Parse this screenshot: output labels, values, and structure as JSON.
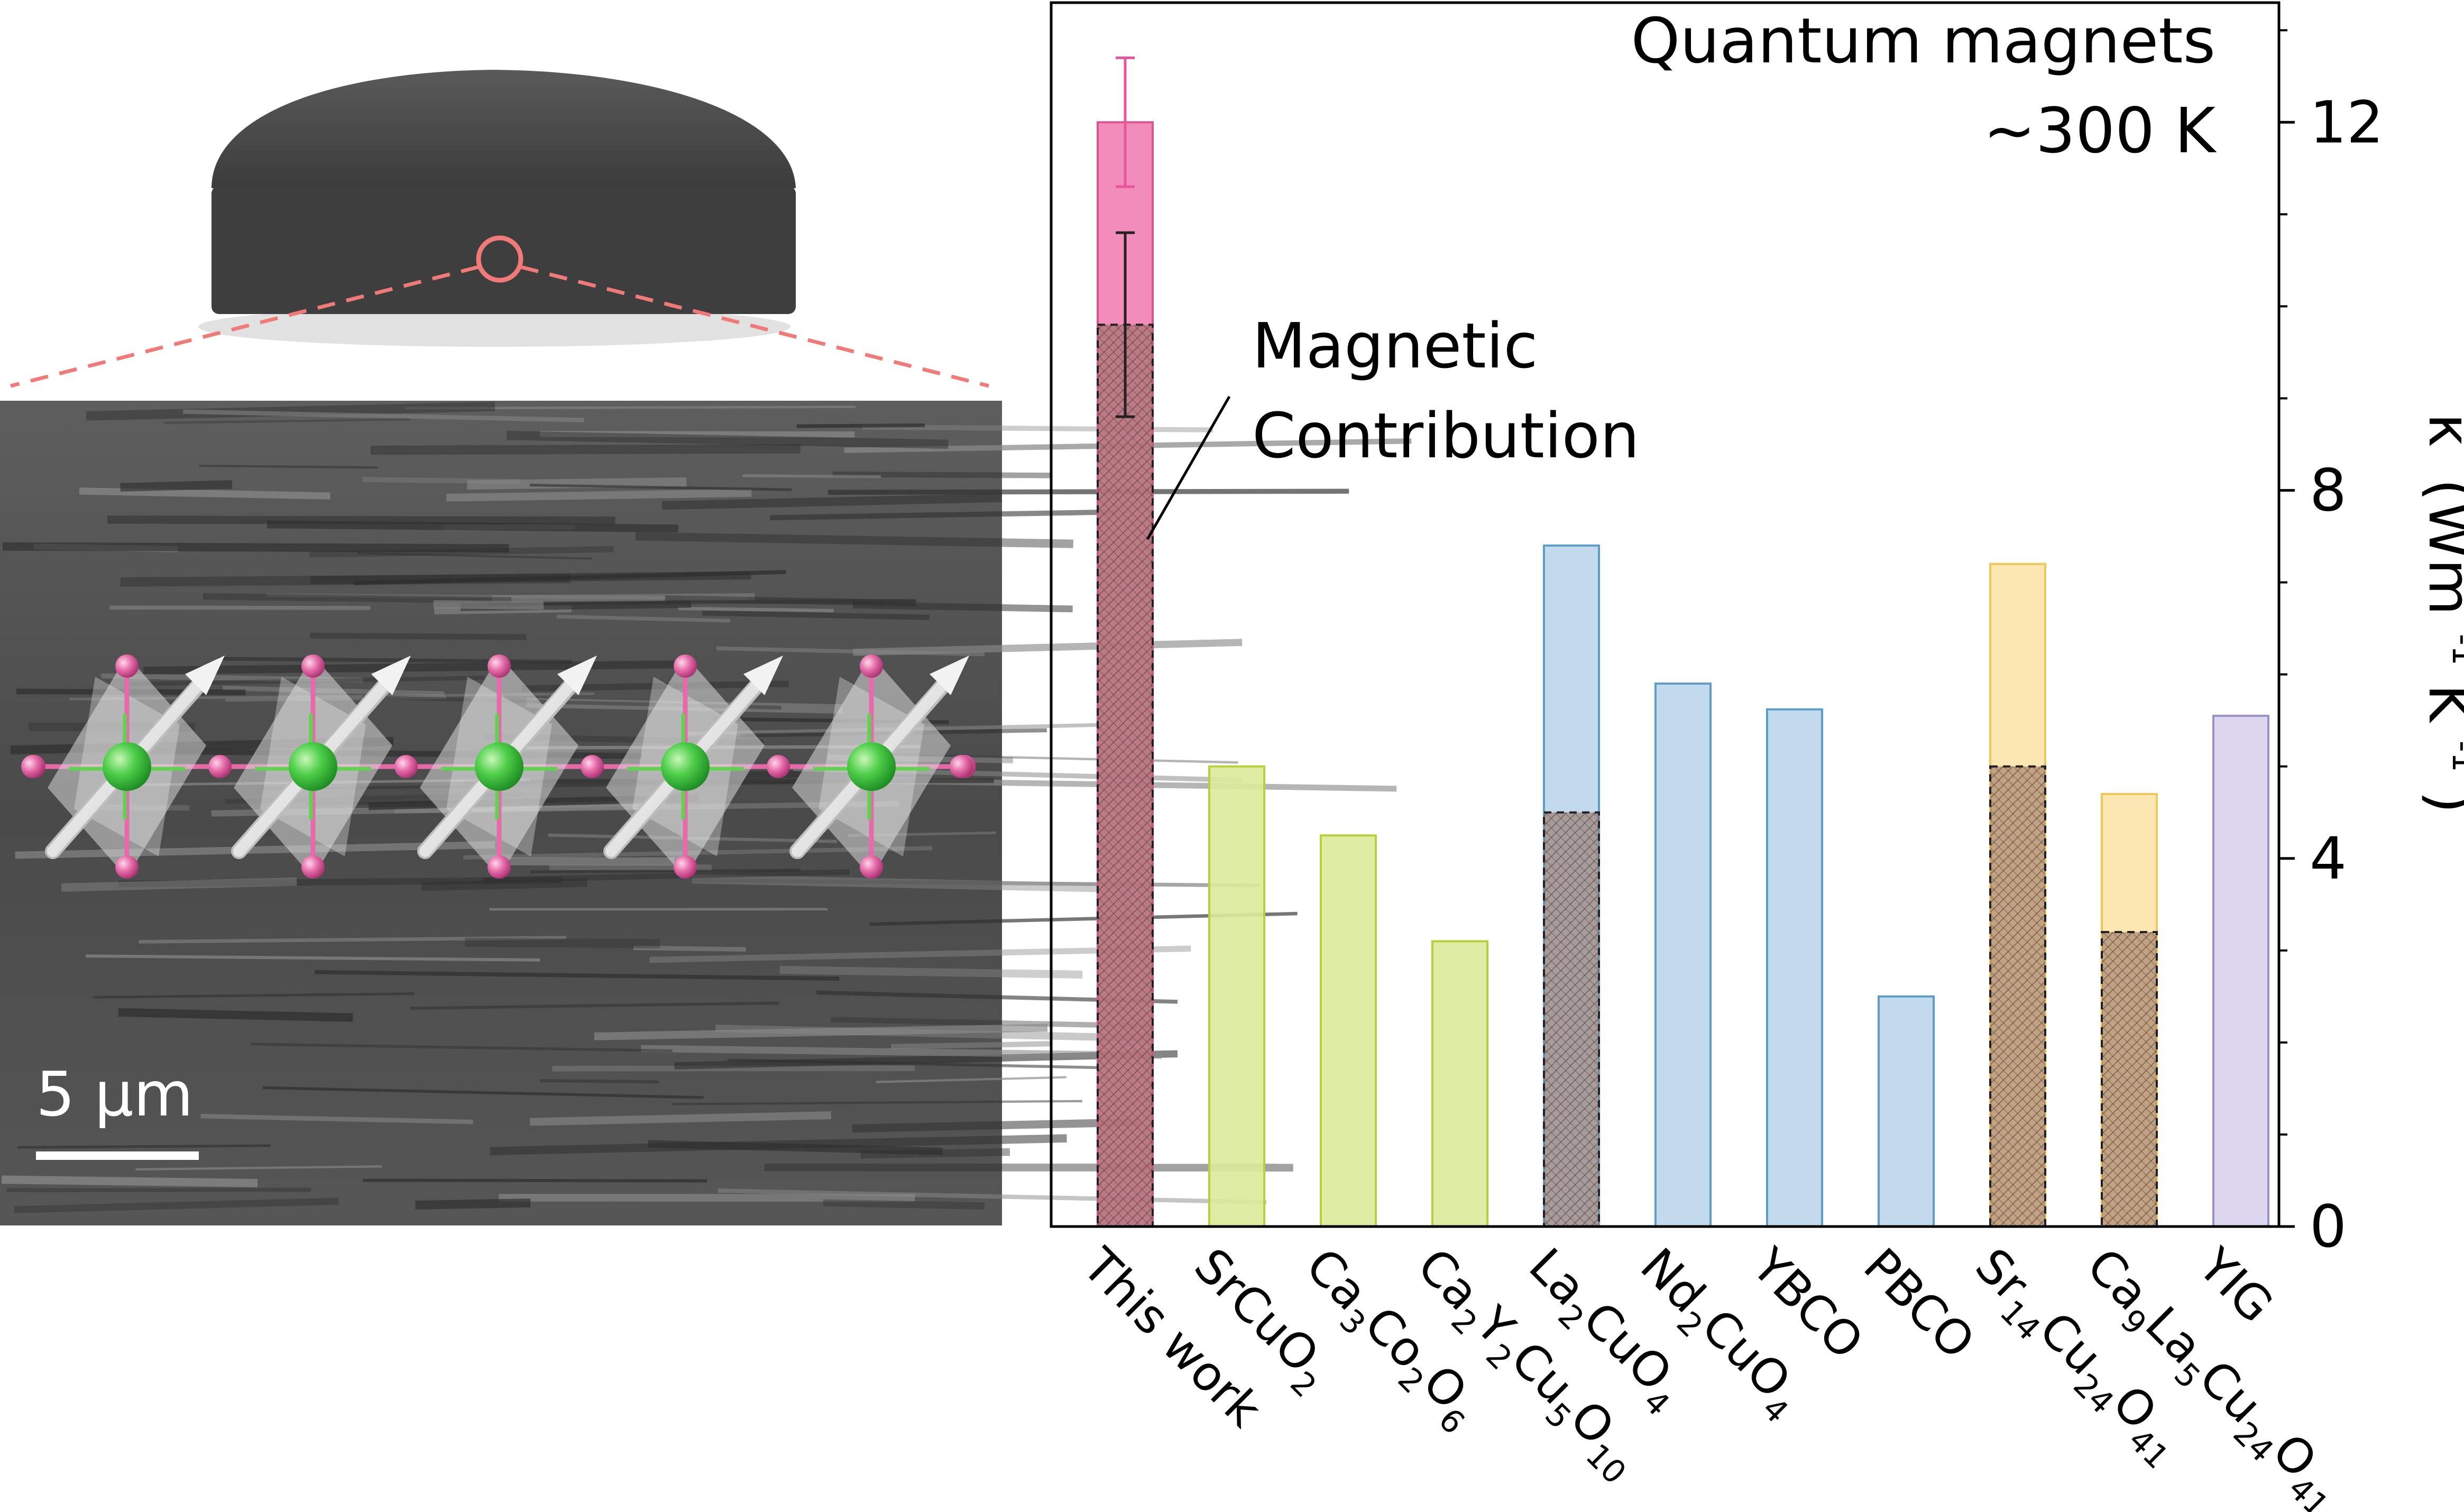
{
  "chart_data": {
    "type": "bar",
    "title": "",
    "annotations": {
      "top_right_line1": "Quantum magnets",
      "top_right_line2": "~300 K",
      "magnetic_line1": "Magnetic",
      "magnetic_line2": "Contribution"
    },
    "ylabel": {
      "kappa": "κ",
      "unit": "(Wm",
      "exp1": "-1",
      "k": "K",
      "exp2": "-1",
      "close": ")"
    },
    "ylim": [
      0,
      13.3
    ],
    "yticks": [
      0,
      4,
      8,
      12
    ],
    "ytick_labels": [
      "0",
      "4",
      "8",
      "12"
    ],
    "minor_step": 1,
    "axis_side": "right",
    "grid": false,
    "categories": [
      {
        "parts": [
          {
            "t": "This work"
          }
        ]
      },
      {
        "parts": [
          {
            "t": "SrCuO"
          },
          {
            "t": "2",
            "sub": true
          }
        ]
      },
      {
        "parts": [
          {
            "t": "Ca"
          },
          {
            "t": "3",
            "sub": true
          },
          {
            "t": "Co"
          },
          {
            "t": "2",
            "sub": true
          },
          {
            "t": "O"
          },
          {
            "t": "6",
            "sub": true
          }
        ]
      },
      {
        "parts": [
          {
            "t": "Ca"
          },
          {
            "t": "2",
            "sub": true
          },
          {
            "t": "Y"
          },
          {
            "t": "2",
            "sub": true
          },
          {
            "t": "Cu"
          },
          {
            "t": "5",
            "sub": true
          },
          {
            "t": "O"
          },
          {
            "t": "10",
            "sub": true
          }
        ]
      },
      {
        "parts": [
          {
            "t": "La"
          },
          {
            "t": "2",
            "sub": true
          },
          {
            "t": "CuO"
          },
          {
            "t": "4",
            "sub": true
          }
        ]
      },
      {
        "parts": [
          {
            "t": "Nd"
          },
          {
            "t": "2",
            "sub": true
          },
          {
            "t": "CuO"
          },
          {
            "t": "4",
            "sub": true
          }
        ]
      },
      {
        "parts": [
          {
            "t": "YBCO"
          }
        ]
      },
      {
        "parts": [
          {
            "t": "PBCO"
          }
        ]
      },
      {
        "parts": [
          {
            "t": "Sr"
          },
          {
            "t": "14",
            "sub": true
          },
          {
            "t": "Cu"
          },
          {
            "t": "24",
            "sub": true
          },
          {
            "t": "O"
          },
          {
            "t": "41",
            "sub": true
          }
        ]
      },
      {
        "parts": [
          {
            "t": "Ca"
          },
          {
            "t": "9",
            "sub": true
          },
          {
            "t": "La"
          },
          {
            "t": "5",
            "sub": true
          },
          {
            "t": "Cu"
          },
          {
            "t": "24",
            "sub": true
          },
          {
            "t": "O"
          },
          {
            "t": "41",
            "sub": true
          }
        ]
      },
      {
        "parts": [
          {
            "t": "YIG"
          }
        ]
      }
    ],
    "values": [
      12.0,
      5.0,
      4.25,
      3.1,
      7.4,
      5.9,
      5.62,
      2.5,
      7.2,
      4.7,
      5.55
    ],
    "magnetic_contribution": [
      9.8,
      null,
      null,
      null,
      4.5,
      null,
      null,
      null,
      5.0,
      3.2,
      null
    ],
    "error_bars": [
      {
        "index": 0,
        "center": 12.0,
        "low": 11.3,
        "high": 12.7
      },
      {
        "index": 0,
        "center": 9.8,
        "low": 8.8,
        "high": 10.8
      }
    ],
    "bar_colors": [
      "#f07fb4",
      "#dcea99",
      "#dcea99",
      "#dcea99",
      "#bcd6ea",
      "#bcd6ea",
      "#bcd6ea",
      "#bcd6ea",
      "#fce4ab",
      "#fce4ab",
      "#d8d3ec"
    ],
    "edge_colors": [
      "#d8558f",
      "#b5d23c",
      "#b5d23c",
      "#b5d23c",
      "#5e9dc7",
      "#5e9dc7",
      "#5e9dc7",
      "#5e9dc7",
      "#f0c85a",
      "#f0c85a",
      "#9a8fc8"
    ],
    "magnetic_fill": "#8f6a5a",
    "error_color": "#e8559a"
  },
  "inset": {
    "scale_bar_label": "5 μm",
    "pellet_color": "#3e3e3e",
    "zoom_marker_color": "#f07a78"
  }
}
